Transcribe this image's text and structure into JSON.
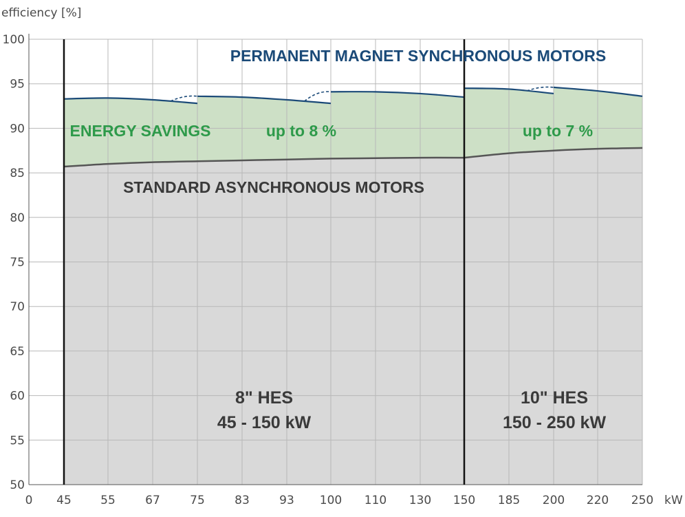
{
  "chart_data": {
    "type": "area",
    "ylabel": "efficiency [%]",
    "xunit": "kW",
    "ylim": [
      50,
      100
    ],
    "y_ticks": [
      "50",
      "55",
      "60",
      "65",
      "70",
      "75",
      "80",
      "85",
      "90",
      "95",
      "100"
    ],
    "x_ticks": [
      "0",
      "45",
      "55",
      "67",
      "75",
      "83",
      "93",
      "100",
      "110",
      "130",
      "150",
      "185",
      "200",
      "220",
      "250"
    ],
    "grid": true,
    "x_categories": [
      "45",
      "55",
      "67",
      "75",
      "83",
      "93",
      "100",
      "110",
      "130",
      "150",
      "185",
      "200",
      "220",
      "250"
    ],
    "series": [
      {
        "name": "STANDARD ASYNCHRONOUS MOTORS",
        "segments": [
          {
            "x": [
              "45",
              "55",
              "67",
              "75",
              "83",
              "93",
              "100",
              "110",
              "130",
              "150"
            ],
            "y": [
              85.7,
              86.0,
              86.2,
              86.3,
              86.4,
              86.5,
              86.6,
              86.65,
              86.7,
              86.7
            ]
          },
          {
            "x": [
              "150",
              "185",
              "200",
              "220",
              "250"
            ],
            "y": [
              86.7,
              87.2,
              87.5,
              87.7,
              87.8
            ]
          }
        ]
      },
      {
        "name": "PERMANENT MAGNET SYNCHRONOUS MOTORS",
        "segments": [
          {
            "x": [
              "45",
              "55",
              "67",
              "75"
            ],
            "y": [
              93.3,
              93.4,
              93.2,
              92.8
            ]
          },
          {
            "x": [
              "75",
              "83",
              "93",
              "100"
            ],
            "y": [
              93.6,
              93.5,
              93.2,
              92.8
            ]
          },
          {
            "x": [
              "100",
              "110",
              "130",
              "150"
            ],
            "y": [
              94.1,
              94.1,
              93.9,
              93.5
            ]
          },
          {
            "x": [
              "150",
              "185",
              "200"
            ],
            "y": [
              94.5,
              94.4,
              93.9
            ]
          },
          {
            "x": [
              "200",
              "220",
              "250"
            ],
            "y": [
              94.6,
              94.2,
              93.6
            ]
          }
        ]
      }
    ],
    "annotations": {
      "pm_title": "PERMANENT MAGNET SYNCHRONOUS MOTORS",
      "energy_savings": "ENERGY SAVINGS",
      "up_to_8": "up to 8 %",
      "up_to_7": "up to 7 %",
      "standard": "STANDARD ASYNCHRONOUS MOTORS",
      "hes8_line1": "8\" HES",
      "hes8_line2": "45 - 150 kW",
      "hes10_line1": "10\" HES",
      "hes10_line2": "150 - 250 kW"
    },
    "colors": {
      "savings_fill": "#cde0c6",
      "standard_fill": "#d9d9d9",
      "pm_line": "#1b4a78",
      "standard_line": "#555555",
      "pm_text": "#1b4a78",
      "savings_text": "#2e9a4a",
      "dark_text": "#3a3a3a",
      "grid": "#b8b8b8"
    }
  }
}
